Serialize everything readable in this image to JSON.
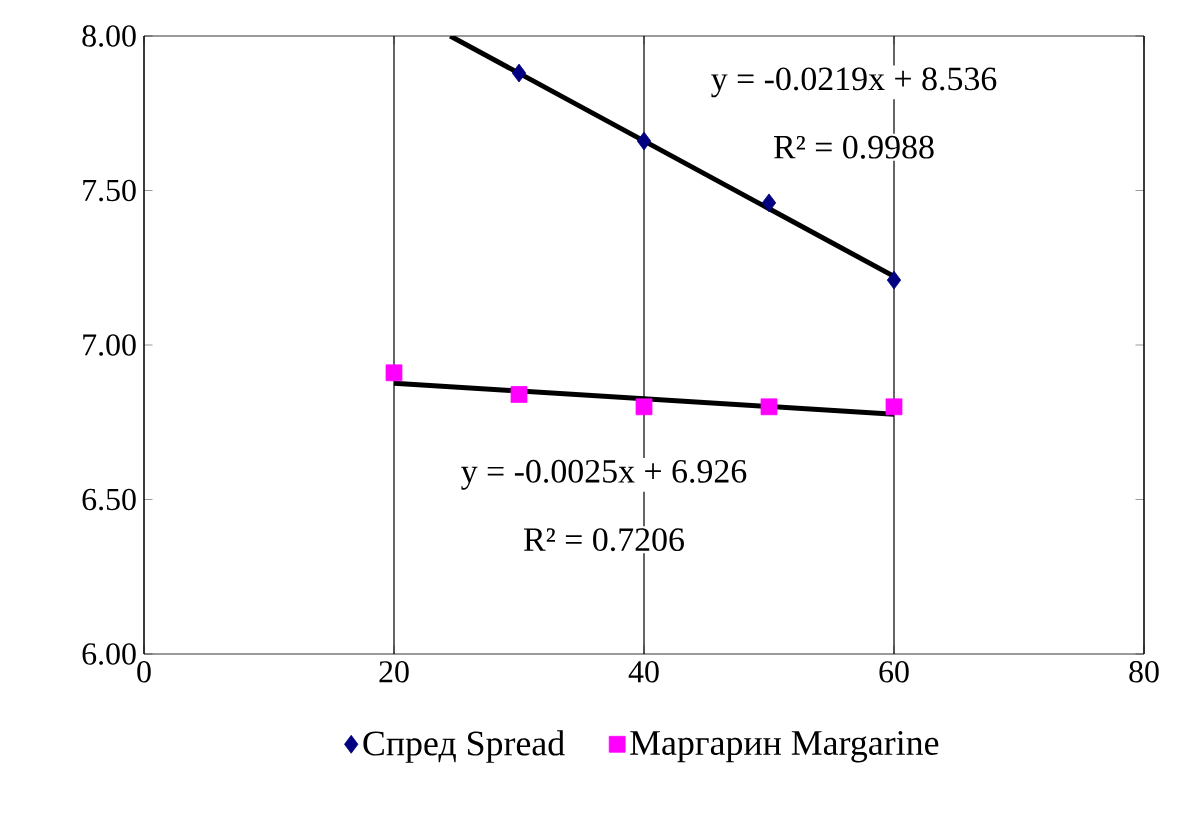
{
  "chart_data": {
    "type": "scatter",
    "xlim": [
      0,
      80
    ],
    "xticks": [
      0,
      20,
      40,
      60,
      80
    ],
    "ylim": [
      6,
      8
    ],
    "yticks": [
      {
        "value": 6,
        "label": "6.00"
      },
      {
        "value": 6.5,
        "label": "6.50"
      },
      {
        "value": 7,
        "label": "7.00"
      },
      {
        "value": 7.5,
        "label": "7.50"
      },
      {
        "value": 8,
        "label": "8.00"
      }
    ],
    "grid": "x",
    "legend": "bottom",
    "series": [
      {
        "name": "Спред Spread",
        "marker": "diamond",
        "color": "#000080",
        "x": [
          30,
          40,
          50,
          60
        ],
        "values": [
          7.88,
          7.66,
          7.46,
          7.21
        ]
      },
      {
        "name": "Маргарин Margarine",
        "marker": "square",
        "color": "#ff00ff",
        "x": [
          20,
          30,
          40,
          50,
          60
        ],
        "values": [
          6.91,
          6.84,
          6.8,
          6.8,
          6.8
        ]
      },
      {
        "type": "line",
        "marker": "none",
        "color": "#000000",
        "x": [
          24.5,
          60
        ],
        "values": [
          8.0,
          7.222
        ]
      },
      {
        "type": "line",
        "marker": "none",
        "color": "#000000",
        "x": [
          20,
          60
        ],
        "values": [
          6.876,
          6.776
        ]
      }
    ],
    "annotations": [
      "y = -0.0219x + 8.536",
      "R² = 0.9988",
      "y = -0.0025x + 6.926",
      "R² = 0.7206"
    ]
  }
}
